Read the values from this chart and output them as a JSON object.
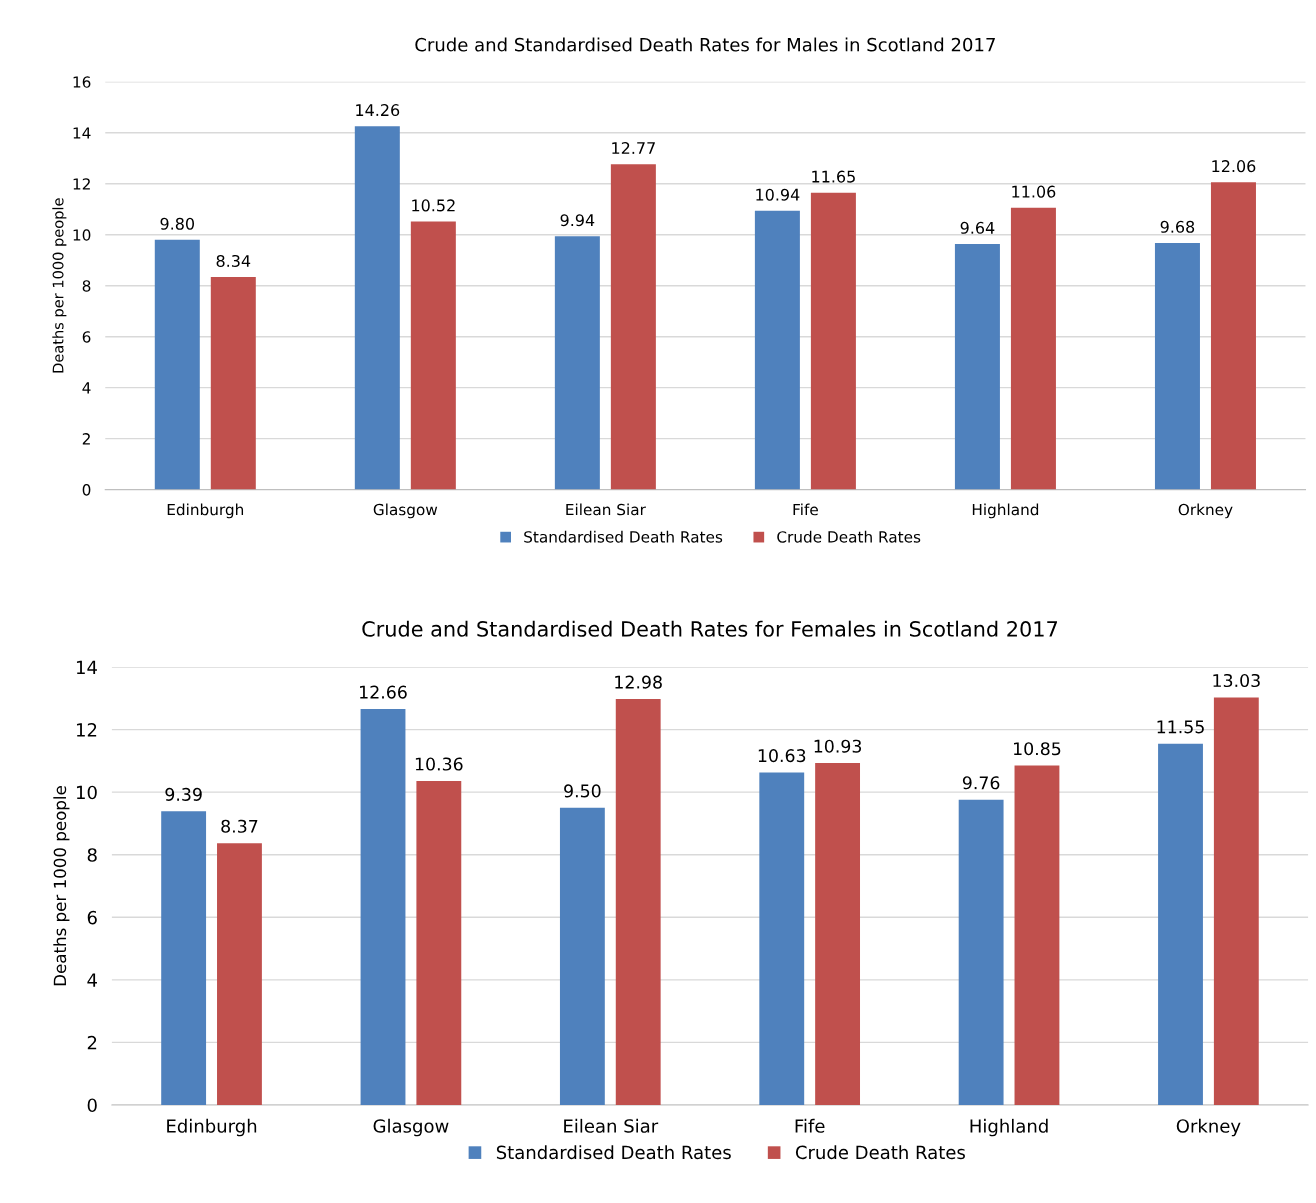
{
  "chart_data": [
    {
      "type": "bar",
      "title": "Crude and Standardised Death Rates for Males in Scotland 2017",
      "ylabel": "Deaths per 1000 people",
      "categories": [
        "Edinburgh",
        "Glasgow",
        "Eilean Siar",
        "Fife",
        "Highland",
        "Orkney"
      ],
      "series": [
        {
          "name": "Standardised Death Rates",
          "color": "#4f81bd",
          "values": [
            9.8,
            14.26,
            9.94,
            10.94,
            9.64,
            9.68
          ],
          "value_labels": [
            "9.80",
            "14.26",
            "9.94",
            "10.94",
            "9.64",
            "9.68"
          ]
        },
        {
          "name": "Crude Death Rates",
          "color": "#c0504d",
          "values": [
            8.34,
            10.52,
            12.77,
            11.65,
            11.06,
            12.06
          ],
          "value_labels": [
            "8.34",
            "10.52",
            "12.77",
            "11.65",
            "11.06",
            "12.06"
          ]
        }
      ],
      "ylim": [
        0,
        16
      ],
      "yticks": [
        0,
        2,
        4,
        6,
        8,
        10,
        12,
        14,
        16
      ],
      "grid": "y",
      "legend": "bottom"
    },
    {
      "type": "bar",
      "title": "Crude and Standardised Death Rates for Females in Scotland 2017",
      "ylabel": "Deaths per 1000 people",
      "categories": [
        "Edinburgh",
        "Glasgow",
        "Eilean Siar",
        "Fife",
        "Highland",
        "Orkney"
      ],
      "series": [
        {
          "name": "Standardised Death Rates",
          "color": "#4f81bd",
          "values": [
            9.39,
            12.66,
            9.5,
            10.63,
            9.76,
            11.55
          ],
          "value_labels": [
            "9.39",
            "12.66",
            "9.50",
            "10.63",
            "9.76",
            "11.55"
          ]
        },
        {
          "name": "Crude Death Rates",
          "color": "#c0504d",
          "values": [
            8.37,
            10.36,
            12.98,
            10.93,
            10.85,
            13.03
          ],
          "value_labels": [
            "8.37",
            "10.36",
            "12.98",
            "10.93",
            "10.85",
            "13.03"
          ]
        }
      ],
      "ylim": [
        0,
        14
      ],
      "yticks": [
        0,
        2,
        4,
        6,
        8,
        10,
        12,
        14
      ],
      "grid": "y",
      "legend": "bottom"
    }
  ]
}
